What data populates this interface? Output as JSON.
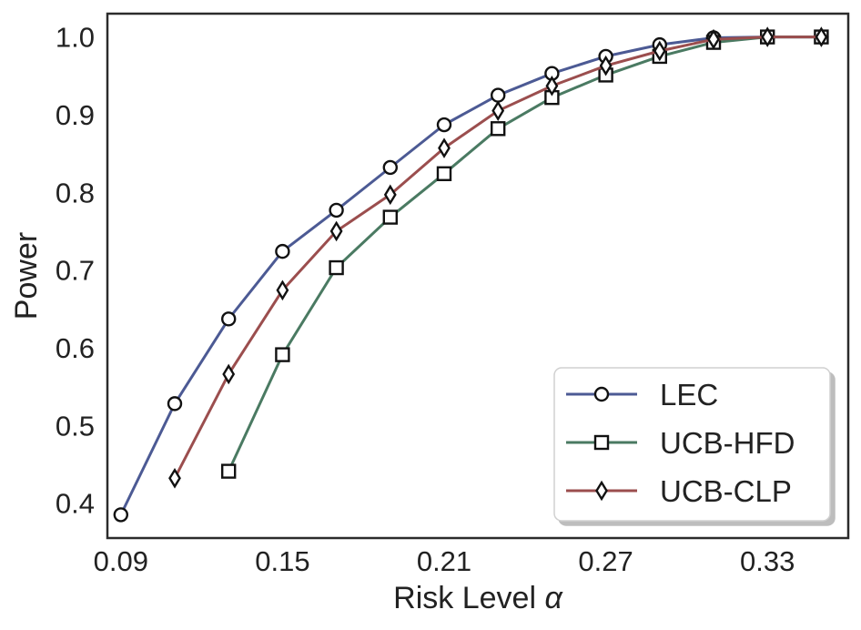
{
  "chart_data": {
    "type": "line",
    "xlabel": "Risk Level",
    "xlabel_symbol": "α",
    "ylabel": "Power",
    "xlim": [
      0.085,
      0.36
    ],
    "ylim": [
      0.355,
      1.03
    ],
    "xticks": [
      0.09,
      0.15,
      0.21,
      0.27,
      0.33
    ],
    "xtick_labels": [
      "0.09",
      "0.15",
      "0.21",
      "0.27",
      "0.33"
    ],
    "yticks": [
      0.4,
      0.5,
      0.6,
      0.7,
      0.8,
      0.9,
      1.0
    ],
    "ytick_labels": [
      "0.4",
      "0.5",
      "0.6",
      "0.7",
      "0.8",
      "0.9",
      "1.0"
    ],
    "grid": false,
    "legend_position": "bottom-right",
    "series": [
      {
        "name": "LEC",
        "color": "#4c5a94",
        "marker": "circle",
        "x": [
          0.09,
          0.11,
          0.13,
          0.15,
          0.17,
          0.19,
          0.21,
          0.23,
          0.25,
          0.27,
          0.29,
          0.31,
          0.33,
          0.35
        ],
        "y": [
          0.385,
          0.528,
          0.637,
          0.724,
          0.777,
          0.832,
          0.887,
          0.925,
          0.953,
          0.975,
          0.99,
          0.999,
          1.0,
          1.0
        ]
      },
      {
        "name": "UCB-HFD",
        "color": "#4a7a62",
        "marker": "square",
        "x": [
          0.13,
          0.15,
          0.17,
          0.19,
          0.21,
          0.23,
          0.25,
          0.27,
          0.29,
          0.31,
          0.33,
          0.35
        ],
        "y": [
          0.441,
          0.591,
          0.703,
          0.768,
          0.824,
          0.882,
          0.922,
          0.951,
          0.975,
          0.993,
          1.0,
          1.0
        ]
      },
      {
        "name": "UCB-CLP",
        "color": "#9b4e4e",
        "marker": "diamond",
        "x": [
          0.11,
          0.13,
          0.15,
          0.17,
          0.19,
          0.21,
          0.23,
          0.25,
          0.27,
          0.29,
          0.31,
          0.33,
          0.35
        ],
        "y": [
          0.432,
          0.566,
          0.674,
          0.75,
          0.797,
          0.857,
          0.905,
          0.937,
          0.963,
          0.982,
          0.997,
          1.0,
          1.0
        ]
      }
    ]
  }
}
